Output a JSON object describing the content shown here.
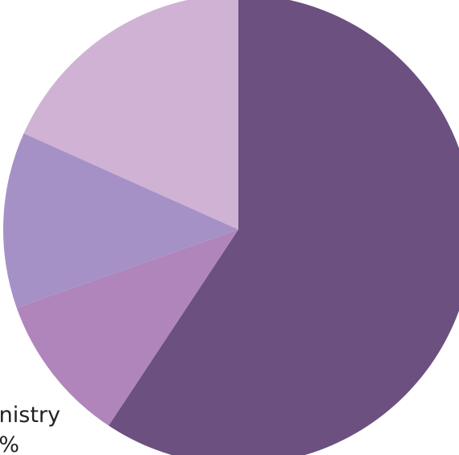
{
  "chart_data": {
    "type": "pie",
    "values": [
      59.3,
      10.3,
      12.1,
      18.3
    ],
    "colors": [
      "#6b5080",
      "#b085bb",
      "#a591c6",
      "#cfb2d4"
    ],
    "annotations": [
      "nistry",
      "%"
    ]
  }
}
